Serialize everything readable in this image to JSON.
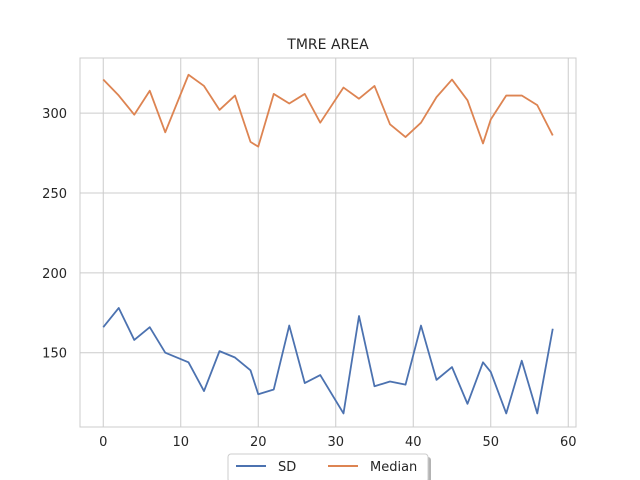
{
  "chart_data": {
    "type": "line",
    "title": "TMRE AREA",
    "xlabel": "",
    "ylabel": "",
    "xlim": [
      -3.0,
      61.0
    ],
    "ylim": [
      103.5,
      334.5
    ],
    "xticks": [
      0,
      10,
      20,
      30,
      40,
      50,
      60
    ],
    "yticks": [
      150,
      200,
      250,
      300
    ],
    "grid": true,
    "legend_position": "bottom-center",
    "series": [
      {
        "name": "SD",
        "color": "#4c72b0",
        "x": [
          0,
          2,
          4,
          6,
          8,
          11,
          13,
          15,
          17,
          19,
          20,
          22,
          24,
          26,
          28,
          31,
          33,
          35,
          37,
          39,
          41,
          43,
          45,
          47,
          49,
          50,
          52,
          54,
          56,
          58
        ],
        "y": [
          166,
          178,
          158,
          166,
          150,
          144,
          126,
          151,
          147,
          139,
          124,
          127,
          167,
          131,
          136,
          112,
          173,
          129,
          132,
          130,
          167,
          133,
          141,
          118,
          144,
          138,
          112,
          145,
          112,
          165
        ]
      },
      {
        "name": "Median",
        "color": "#dd8452",
        "x": [
          0,
          2,
          4,
          6,
          8,
          11,
          13,
          15,
          17,
          19,
          20,
          22,
          24,
          26,
          28,
          31,
          33,
          35,
          37,
          39,
          41,
          43,
          45,
          47,
          49,
          50,
          52,
          54,
          56,
          58
        ],
        "y": [
          321,
          311,
          299,
          314,
          288,
          324,
          317,
          302,
          311,
          282,
          279,
          312,
          306,
          312,
          294,
          316,
          309,
          317,
          293,
          285,
          294,
          310,
          321,
          308,
          281,
          296,
          311,
          311,
          305,
          286
        ]
      }
    ]
  }
}
